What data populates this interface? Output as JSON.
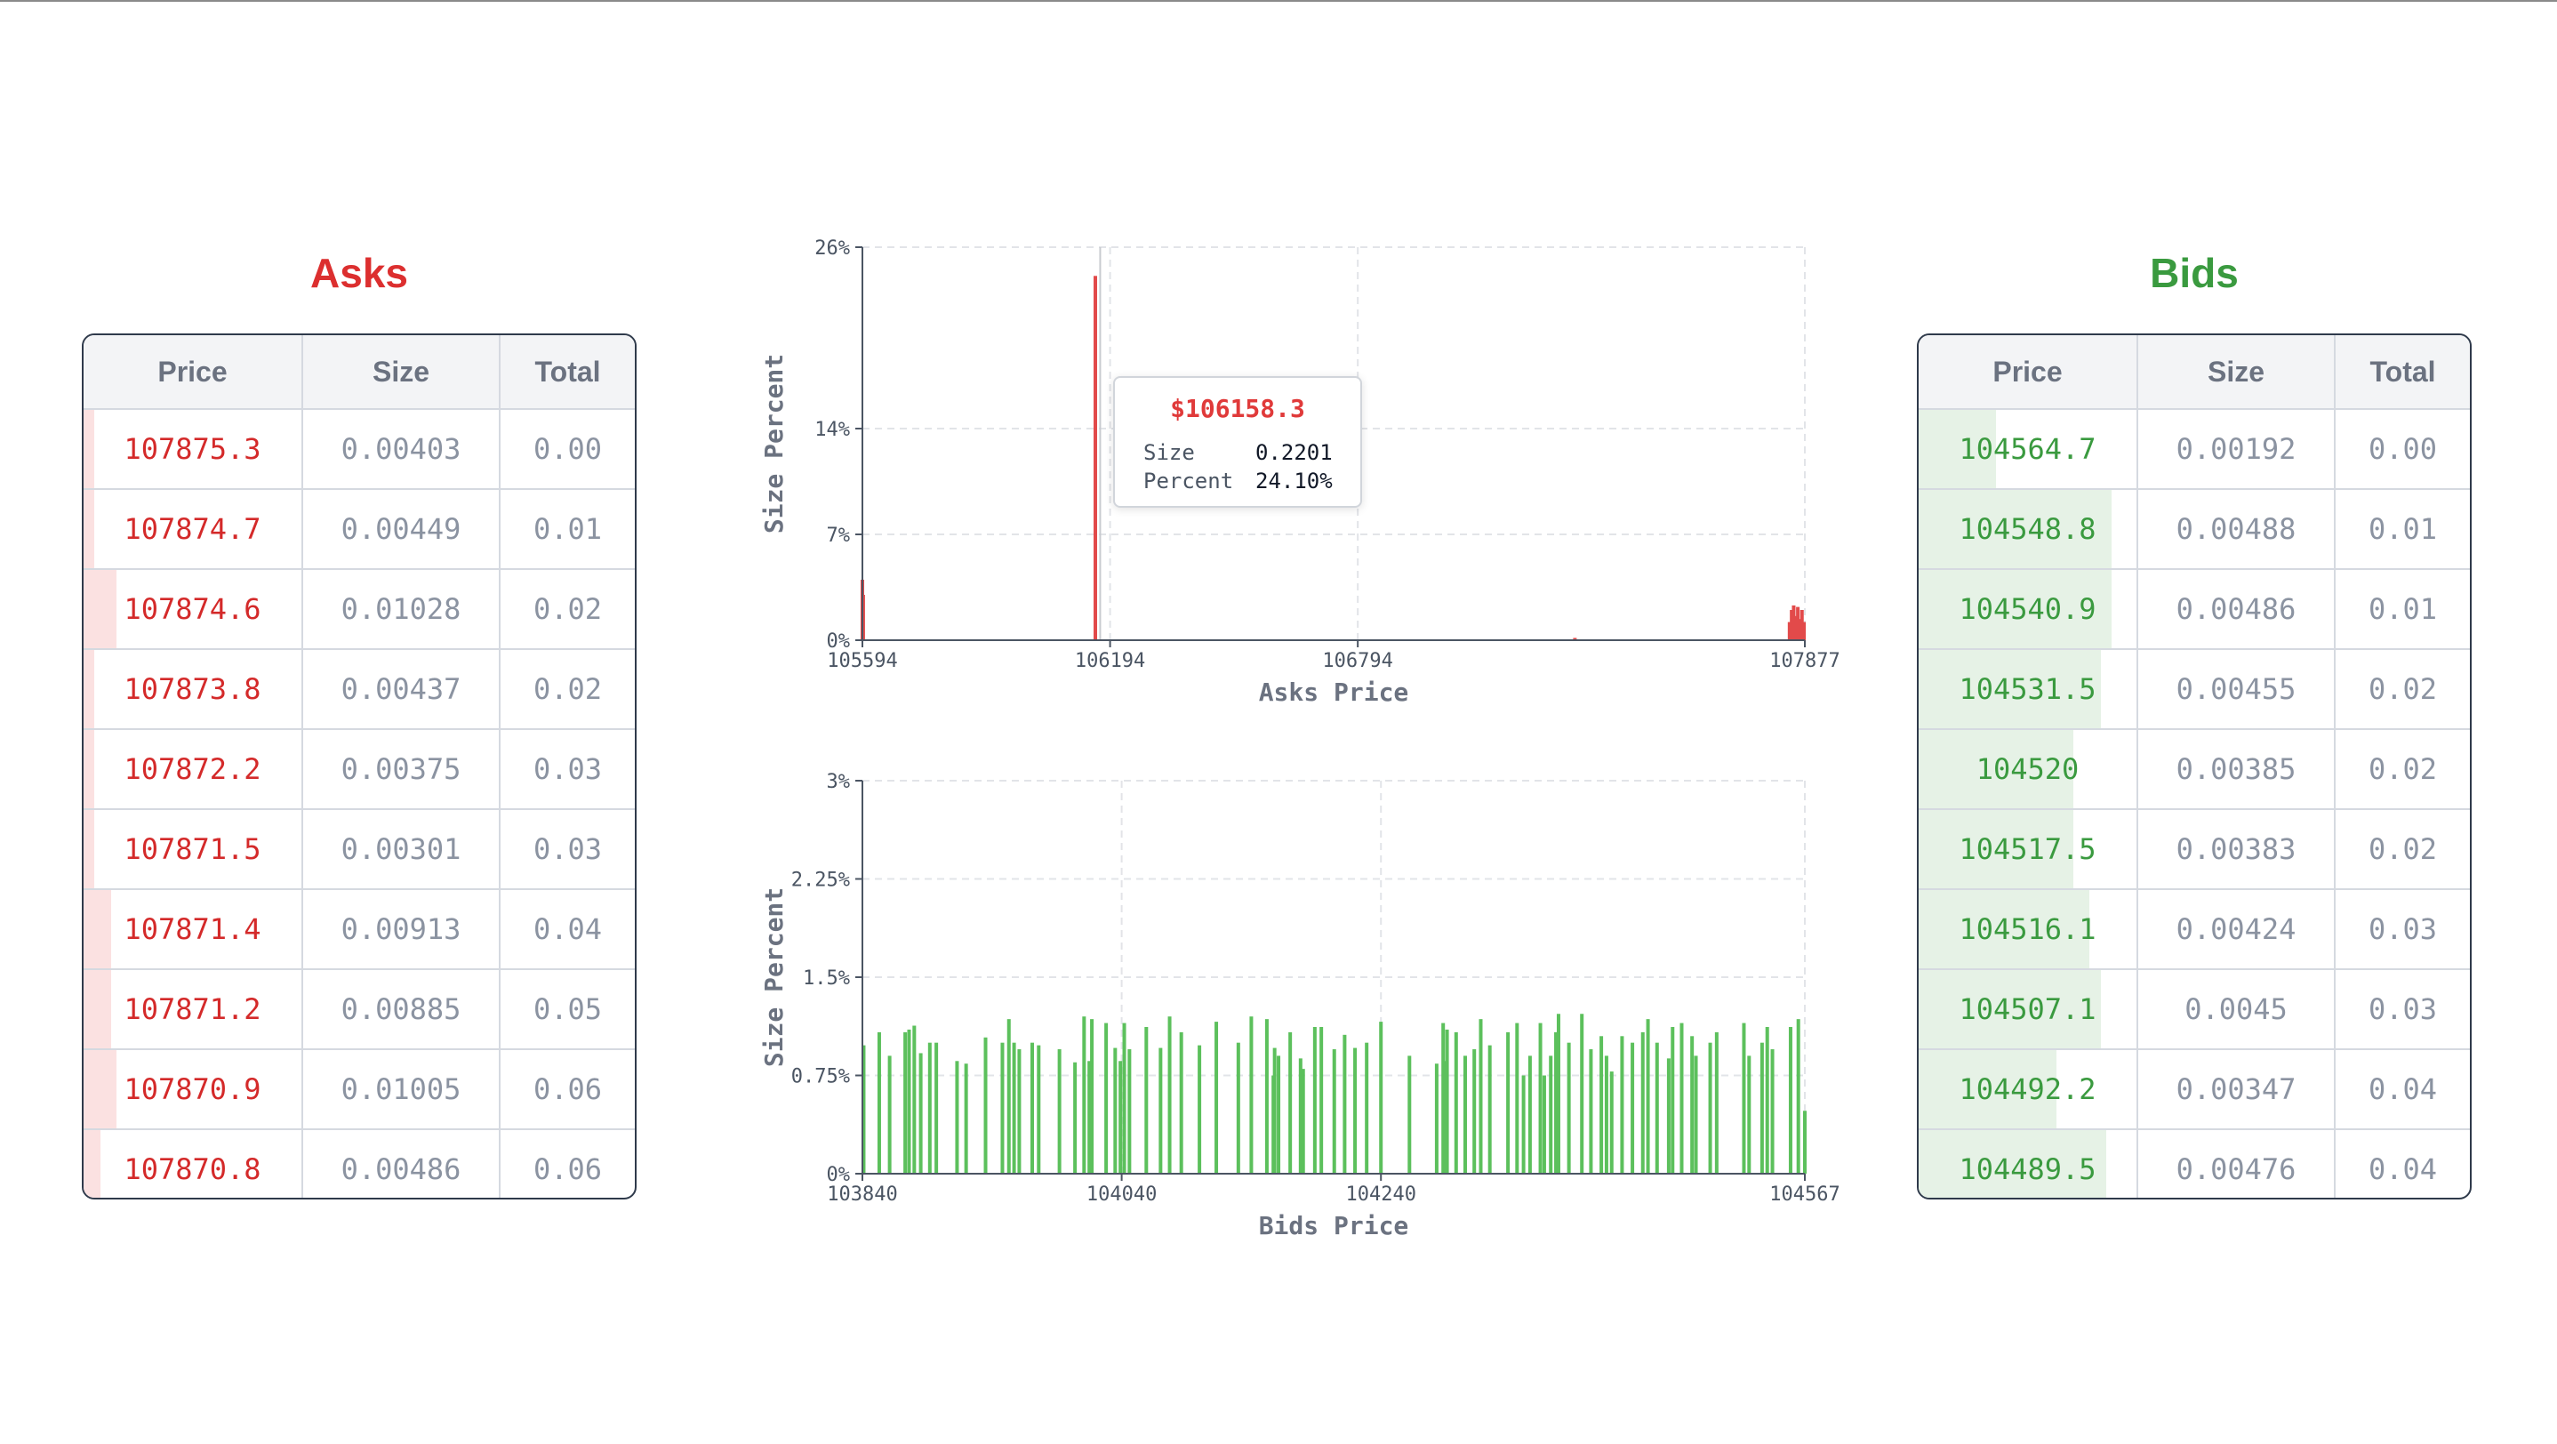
{
  "asks": {
    "title": "Asks",
    "headers": [
      "Price",
      "Size",
      "Total"
    ],
    "rows": [
      {
        "price": "107875.3",
        "size": "0.00403",
        "total": "0.00",
        "depth": 0.02
      },
      {
        "price": "107874.7",
        "size": "0.00449",
        "total": "0.01",
        "depth": 0.02
      },
      {
        "price": "107874.6",
        "size": "0.01028",
        "total": "0.02",
        "depth": 0.06
      },
      {
        "price": "107873.8",
        "size": "0.00437",
        "total": "0.02",
        "depth": 0.02
      },
      {
        "price": "107872.2",
        "size": "0.00375",
        "total": "0.03",
        "depth": 0.02
      },
      {
        "price": "107871.5",
        "size": "0.00301",
        "total": "0.03",
        "depth": 0.02
      },
      {
        "price": "107871.4",
        "size": "0.00913",
        "total": "0.04",
        "depth": 0.05
      },
      {
        "price": "107871.2",
        "size": "0.00885",
        "total": "0.05",
        "depth": 0.05
      },
      {
        "price": "107870.9",
        "size": "0.01005",
        "total": "0.06",
        "depth": 0.06
      },
      {
        "price": "107870.8",
        "size": "0.00486",
        "total": "0.06",
        "depth": 0.03
      }
    ]
  },
  "bids": {
    "title": "Bids",
    "headers": [
      "Price",
      "Size",
      "Total"
    ],
    "rows": [
      {
        "price": "104564.7",
        "size": "0.00192",
        "total": "0.00",
        "depth": 0.14
      },
      {
        "price": "104548.8",
        "size": "0.00488",
        "total": "0.01",
        "depth": 0.35
      },
      {
        "price": "104540.9",
        "size": "0.00486",
        "total": "0.01",
        "depth": 0.35
      },
      {
        "price": "104531.5",
        "size": "0.00455",
        "total": "0.02",
        "depth": 0.33
      },
      {
        "price": "104520",
        "size": "0.00385",
        "total": "0.02",
        "depth": 0.28
      },
      {
        "price": "104517.5",
        "size": "0.00383",
        "total": "0.02",
        "depth": 0.28
      },
      {
        "price": "104516.1",
        "size": "0.00424",
        "total": "0.03",
        "depth": 0.31
      },
      {
        "price": "104507.1",
        "size": "0.0045",
        "total": "0.03",
        "depth": 0.33
      },
      {
        "price": "104492.2",
        "size": "0.00347",
        "total": "0.04",
        "depth": 0.25
      },
      {
        "price": "104489.5",
        "size": "0.00476",
        "total": "0.04",
        "depth": 0.34
      }
    ]
  },
  "tooltip": {
    "price": "$106158.3",
    "size_label": "Size",
    "size_value": "0.2201",
    "percent_label": "Percent",
    "percent_value": "24.10%"
  },
  "colors": {
    "ask": "#dc2f2f",
    "bid": "#3a9a3f",
    "ask_bar": "#e24a4a",
    "bid_bar": "#5cc05c"
  },
  "chart_data": [
    {
      "type": "bar",
      "name": "asks-depth",
      "xlabel": "Asks Price",
      "ylabel": "Size Percent",
      "xlim": [
        105594,
        107877
      ],
      "ylim": [
        0,
        26
      ],
      "x_ticks": [
        105594,
        106194,
        106794,
        107877
      ],
      "y_ticks": [
        0,
        7,
        14,
        26
      ],
      "y_tick_labels": [
        "0%",
        "7%",
        "14%",
        "26%"
      ],
      "grid": true,
      "hover_x": 106170,
      "x": [
        105594,
        105596,
        106158.3,
        107320,
        107840,
        107845,
        107850,
        107855,
        107860,
        107865,
        107870,
        107875
      ],
      "y": [
        4.0,
        3.0,
        24.1,
        0.15,
        1.2,
        2.0,
        2.3,
        1.6,
        2.2,
        1.4,
        2.0,
        1.2
      ]
    },
    {
      "type": "bar",
      "name": "bids-depth",
      "xlabel": "Bids Price",
      "ylabel": "Size Percent",
      "xlim": [
        103840,
        104567
      ],
      "ylim": [
        0,
        3
      ],
      "x_ticks": [
        103840,
        104040,
        104240,
        104567
      ],
      "y_ticks": [
        0,
        0.75,
        1.5,
        2.25,
        3
      ],
      "y_tick_labels": [
        "0%",
        "0.75%",
        "1.5%",
        "2.25%",
        "3%"
      ],
      "grid": true,
      "x": [
        103841,
        103853,
        103861,
        103873,
        103876,
        103880,
        103885,
        103892,
        103897,
        103913,
        103920,
        103935,
        103948,
        103953,
        103957,
        103961,
        103971,
        103976,
        103992,
        104004,
        104011,
        104015,
        104017,
        104028,
        104035,
        104039,
        104042,
        104046,
        104059,
        104070,
        104077,
        104086,
        104100,
        104113,
        104130,
        104140,
        104152,
        104157,
        104158,
        104161,
        104170,
        104178,
        104180,
        104189,
        104194,
        104204,
        104212,
        104220,
        104229,
        104240,
        104262,
        104283,
        104288,
        104289,
        104291,
        104298,
        104305,
        104312,
        104317,
        104324,
        104338,
        104345,
        104350,
        104355,
        104363,
        104366,
        104371,
        104375,
        104377,
        104385,
        104395,
        104402,
        104410,
        104414,
        104418,
        104426,
        104434,
        104442,
        104446,
        104453,
        104462,
        104465,
        104472,
        104480,
        104483,
        104494,
        104499,
        104520,
        104524,
        104534,
        104538,
        104542,
        104556,
        104562,
        104567
      ],
      "y": [
        0.98,
        1.08,
        0.9,
        1.08,
        1.1,
        1.13,
        0.92,
        1.0,
        1.0,
        0.86,
        0.84,
        1.04,
        1.0,
        1.18,
        1.0,
        0.95,
        1.0,
        0.98,
        0.95,
        0.85,
        1.2,
        0.86,
        1.18,
        1.15,
        0.96,
        0.86,
        1.15,
        0.95,
        1.12,
        0.96,
        1.2,
        1.08,
        0.98,
        1.16,
        1.0,
        1.2,
        1.18,
        0.75,
        0.96,
        0.9,
        1.08,
        0.88,
        0.8,
        1.12,
        1.12,
        0.95,
        1.06,
        0.96,
        1.0,
        1.16,
        0.9,
        0.84,
        1.15,
        0.86,
        1.1,
        1.08,
        0.9,
        0.95,
        1.18,
        0.98,
        1.08,
        1.15,
        0.75,
        0.9,
        1.15,
        0.75,
        0.9,
        1.08,
        1.22,
        1.0,
        1.22,
        0.95,
        1.05,
        0.9,
        0.78,
        1.05,
        1.0,
        1.08,
        1.18,
        1.0,
        0.88,
        1.12,
        1.15,
        1.05,
        0.9,
        1.0,
        1.08,
        1.15,
        0.9,
        1.0,
        1.12,
        0.95,
        1.12,
        1.18,
        0.48
      ]
    }
  ]
}
